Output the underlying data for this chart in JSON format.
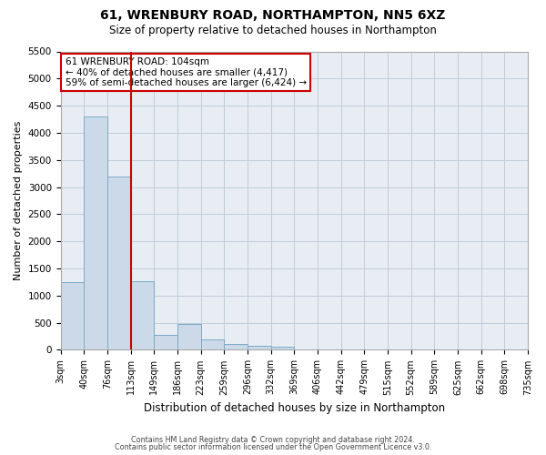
{
  "title": "61, WRENBURY ROAD, NORTHAMPTON, NN5 6XZ",
  "subtitle": "Size of property relative to detached houses in Northampton",
  "xlabel": "Distribution of detached houses by size in Northampton",
  "ylabel": "Number of detached properties",
  "footer1": "Contains HM Land Registry data © Crown copyright and database right 2024.",
  "footer2": "Contains public sector information licensed under the Open Government Licence v3.0.",
  "bin_labels": [
    "3sqm",
    "40sqm",
    "76sqm",
    "113sqm",
    "149sqm",
    "186sqm",
    "223sqm",
    "259sqm",
    "296sqm",
    "332sqm",
    "369sqm",
    "406sqm",
    "442sqm",
    "479sqm",
    "515sqm",
    "552sqm",
    "589sqm",
    "625sqm",
    "662sqm",
    "698sqm",
    "735sqm"
  ],
  "counts": [
    1250,
    4300,
    3200,
    1270,
    280,
    480,
    200,
    100,
    70,
    50,
    0,
    0,
    0,
    0,
    0,
    0,
    0,
    0,
    0,
    0
  ],
  "bar_facecolor": "#ccd9e8",
  "bar_edgecolor": "#7aaac8",
  "grid_color": "#c0ccd8",
  "bg_color": "#e8edf4",
  "vline_color": "#cc0000",
  "annotation_text": "61 WRENBURY ROAD: 104sqm\n← 40% of detached houses are smaller (4,417)\n59% of semi-detached houses are larger (6,424) →",
  "annotation_box_color": "#cc0000",
  "ylim": [
    0,
    5500
  ],
  "yticks": [
    0,
    500,
    1000,
    1500,
    2000,
    2500,
    3000,
    3500,
    4000,
    4500,
    5000,
    5500
  ],
  "figsize": [
    6.0,
    5.0
  ],
  "dpi": 100
}
